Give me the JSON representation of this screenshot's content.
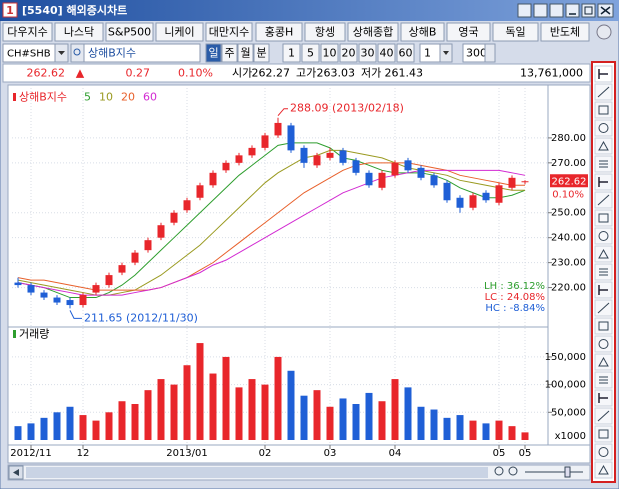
{
  "window": {
    "icon_text": "1",
    "title": "[5540] 해외증시차트"
  },
  "tabs": [
    "다우지수",
    "나스닥",
    "S&P500",
    "니케이",
    "대만지수",
    "홍콩H",
    "항셍",
    "상해종합",
    "상해B",
    "영국",
    "독일",
    "반도체"
  ],
  "controls": {
    "code": "CH#SHB",
    "name": "상해B지수",
    "periods": [
      "일",
      "주",
      "월",
      "분"
    ],
    "intervals": [
      "1",
      "5",
      "10",
      "20",
      "30",
      "40",
      "60"
    ],
    "interval_value": "1",
    "count": "300"
  },
  "quote": {
    "last": "262.62",
    "arrow": "▲",
    "change": "0.27",
    "change_pct": "0.10%",
    "open_label": "시가",
    "open": "262.27",
    "high_label": "고가",
    "high": "263.03",
    "low_label": "저가",
    "low": "261.43",
    "volume": "13,761,000"
  },
  "chart_data": [
    {
      "type": "candlestick",
      "title": "상해B지수",
      "categories": [
        null,
        "2012/11",
        null,
        null,
        null,
        "12",
        null,
        null,
        null,
        null,
        null,
        null,
        null,
        "2013/01",
        null,
        null,
        null,
        null,
        null,
        "02",
        null,
        null,
        null,
        null,
        "03",
        null,
        null,
        null,
        null,
        "04",
        null,
        null,
        null,
        null,
        null,
        null,
        null,
        "05",
        null,
        "05"
      ],
      "open": [
        222,
        221,
        218,
        216,
        215,
        213,
        218,
        221,
        226,
        230,
        235,
        240,
        246,
        251,
        256,
        261,
        267,
        270,
        273,
        276,
        281,
        285,
        276,
        269,
        272,
        275,
        271,
        266,
        260,
        265,
        271,
        268,
        265,
        262,
        256,
        252,
        258,
        254,
        260,
        262.27
      ],
      "high": [
        224,
        222,
        219,
        217,
        216,
        218,
        222,
        226,
        230,
        235,
        240,
        246,
        251,
        256,
        262,
        267,
        271,
        274,
        277,
        282,
        288.09,
        286,
        277,
        274,
        276,
        276,
        272,
        267,
        267,
        271,
        272,
        269,
        266,
        263,
        257,
        258,
        259,
        262,
        265,
        263.03
      ],
      "low": [
        220,
        217,
        215,
        213,
        211.65,
        212,
        217,
        220,
        225,
        229,
        234,
        239,
        245,
        250,
        255,
        260,
        266,
        269,
        272,
        275,
        280,
        274,
        268,
        268,
        271,
        269,
        265,
        260,
        259,
        264,
        266,
        263,
        260,
        254,
        250,
        251,
        254,
        253,
        259,
        261.43
      ],
      "close": [
        221,
        218,
        216,
        214,
        213,
        217,
        221,
        225,
        229,
        234,
        239,
        245,
        250,
        255,
        261,
        266,
        270,
        273,
        276,
        281,
        286,
        275,
        270,
        273,
        274,
        270,
        266,
        261,
        266,
        270,
        267,
        264,
        261,
        255,
        252,
        257,
        255,
        261,
        264,
        262.62
      ],
      "up_color": "#e8262b",
      "down_color": "#1f5fd6",
      "series": [
        {
          "name": "5",
          "color": "#2e9e2e",
          "values": [
            222,
            221,
            220,
            218,
            216,
            216,
            216,
            218,
            221,
            225,
            230,
            235,
            240,
            245,
            250,
            255,
            260,
            265,
            269,
            273,
            277,
            278,
            278,
            278,
            276,
            272,
            271,
            269,
            267,
            266,
            266,
            266,
            265,
            263,
            260,
            258,
            256,
            256,
            257,
            259
          ]
        },
        {
          "name": "10",
          "color": "#9a9a20",
          "values": [
            223,
            222,
            221,
            220,
            219,
            218,
            217,
            217,
            218,
            219,
            222,
            225,
            229,
            233,
            237,
            242,
            247,
            252,
            257,
            262,
            266,
            269,
            272,
            273,
            275,
            275,
            274,
            273,
            272,
            270,
            268,
            267,
            266,
            265,
            263,
            262,
            261,
            260,
            259,
            259
          ]
        },
        {
          "name": "20",
          "color": "#e8602b",
          "values": [
            224,
            223,
            223,
            222,
            221,
            220,
            219,
            219,
            219,
            219,
            219,
            220,
            222,
            224,
            227,
            230,
            234,
            238,
            242,
            246,
            250,
            254,
            258,
            261,
            264,
            267,
            269,
            270,
            270,
            270,
            270,
            269,
            268,
            267,
            265,
            264,
            263,
            262,
            261,
            261
          ]
        },
        {
          "name": "60",
          "color": "#d22ad2",
          "values": [
            222,
            221,
            220,
            219,
            218,
            217,
            217,
            217,
            217,
            218,
            219,
            220,
            222,
            224,
            226,
            229,
            231,
            234,
            237,
            240,
            243,
            246,
            249,
            252,
            255,
            258,
            260,
            262,
            264,
            265,
            266,
            267,
            267,
            267,
            267,
            267,
            267,
            267,
            266,
            265
          ]
        }
      ],
      "ylim": [
        205,
        300
      ],
      "yticks": [
        {
          "value": 220,
          "label": "220.00"
        },
        {
          "value": 230,
          "label": "230.00"
        },
        {
          "value": 240,
          "label": "240.00"
        },
        {
          "value": 250,
          "label": "250.00"
        },
        {
          "value": 270,
          "label": "270.00"
        },
        {
          "value": 280,
          "label": "280.00"
        }
      ],
      "grid": true,
      "annotations": {
        "high_text": "288.09 (2013/02/18)",
        "low_text": "211.65 (2012/11/30)",
        "last_label": "262.62",
        "last_change": "0.10%"
      },
      "stats": [
        {
          "text": "LH : 36.12%",
          "color": "#2e9e2e"
        },
        {
          "text": "LC : 24.08%",
          "color": "#e8262b"
        },
        {
          "text": "HC : -8.84%",
          "color": "#1f5fd6"
        }
      ]
    },
    {
      "type": "bar",
      "title": "거래량",
      "unit_label": "x1000",
      "values": [
        25000,
        30000,
        40000,
        50000,
        60000,
        45000,
        35000,
        50000,
        70000,
        65000,
        90000,
        110000,
        100000,
        135000,
        175000,
        120000,
        150000,
        95000,
        110000,
        100000,
        150000,
        125000,
        80000,
        90000,
        60000,
        75000,
        65000,
        85000,
        70000,
        110000,
        95000,
        60000,
        55000,
        40000,
        45000,
        35000,
        30000,
        35000,
        25000,
        13761
      ],
      "ylim": [
        0,
        195000
      ],
      "yticks": [
        {
          "value": 50000,
          "label": "50,000"
        },
        {
          "value": 100000,
          "label": "100,000"
        },
        {
          "value": 150000,
          "label": "150,000"
        }
      ],
      "grid": true
    }
  ]
}
